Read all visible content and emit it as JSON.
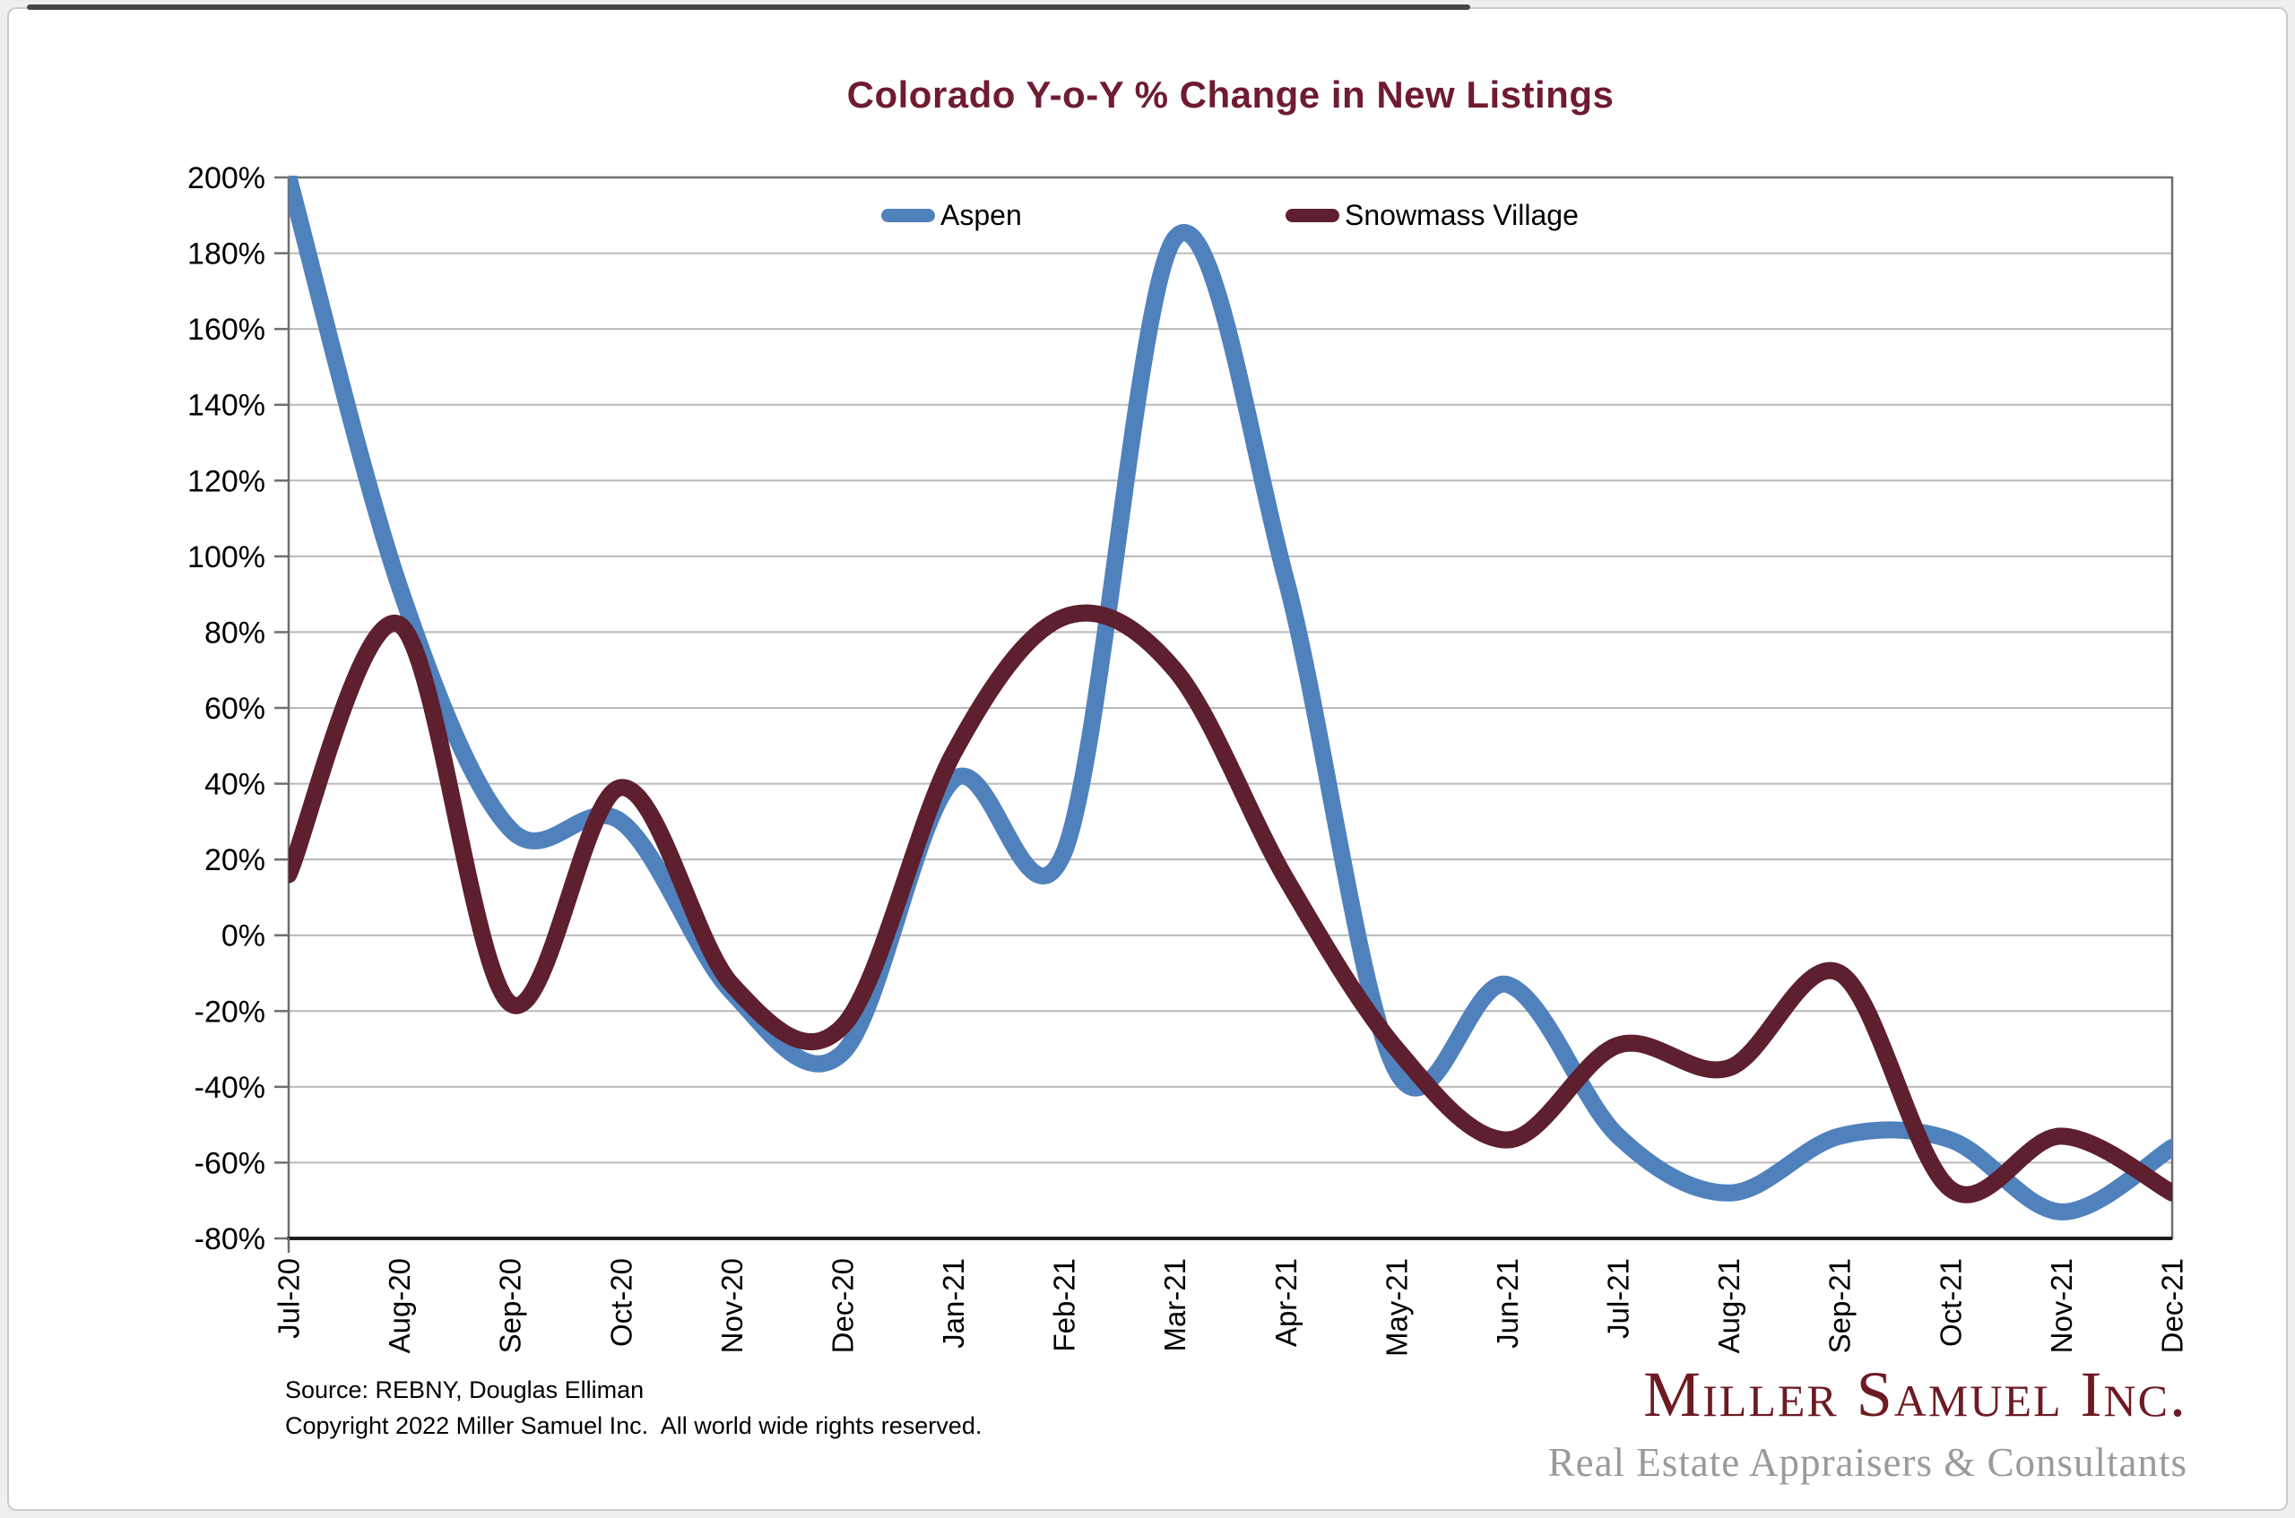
{
  "chart": {
    "title": "Colorado Y-o-Y % Change in New Listings"
  },
  "chart_data": {
    "type": "line",
    "title": "Colorado Y-o-Y % Change in New Listings",
    "categories": [
      "Jul-20",
      "Aug-20",
      "Sep-20",
      "Oct-20",
      "Nov-20",
      "Dec-20",
      "Jan-21",
      "Feb-21",
      "Mar-21",
      "Apr-21",
      "May-21",
      "Jun-21",
      "Jul-21",
      "Aug-21",
      "Sep-21",
      "Oct-21",
      "Nov-21",
      "Dec-21"
    ],
    "series": [
      {
        "name": "Aspen",
        "color": "#4f81bd",
        "values": [
          200,
          92,
          28,
          30,
          -15,
          -31,
          41,
          22,
          184,
          94,
          -36,
          -13,
          -53,
          -68,
          -53,
          -54,
          -73,
          -56
        ]
      },
      {
        "name": "Snowmass Village",
        "color": "#5e1f2e",
        "values": [
          16,
          82,
          -18,
          39,
          -13,
          -24,
          48,
          84,
          70,
          15,
          -30,
          -54,
          -29,
          -35,
          -10,
          -67,
          -53,
          -68
        ]
      }
    ],
    "ylim": [
      -80,
      200
    ],
    "ytick_step": 20,
    "ytick_format": "percent",
    "xlabel": "",
    "ylabel": "",
    "grid": "horizontal",
    "legend_position": "top-inside",
    "line_style": "smoothed-thick"
  },
  "footer": {
    "source": "Source: REBNY, Douglas Elliman",
    "copyright": "Copyright 2022 Miller Samuel Inc.  All world wide rights reserved."
  },
  "logo": {
    "name": "Miller Samuel Inc.",
    "tagline": "Real Estate Appraisers & Consultants"
  },
  "colors": {
    "title": "#6f1b30",
    "aspen_line": "#4f81bd",
    "snowmass_line": "#5e1f2e",
    "gridline": "#b9b9b9",
    "plot_frame": "#6f6f6f",
    "bottom_axis": "#1f1f1f",
    "logo_red": "#6e1a23",
    "logo_gray": "#9a9a9a"
  }
}
